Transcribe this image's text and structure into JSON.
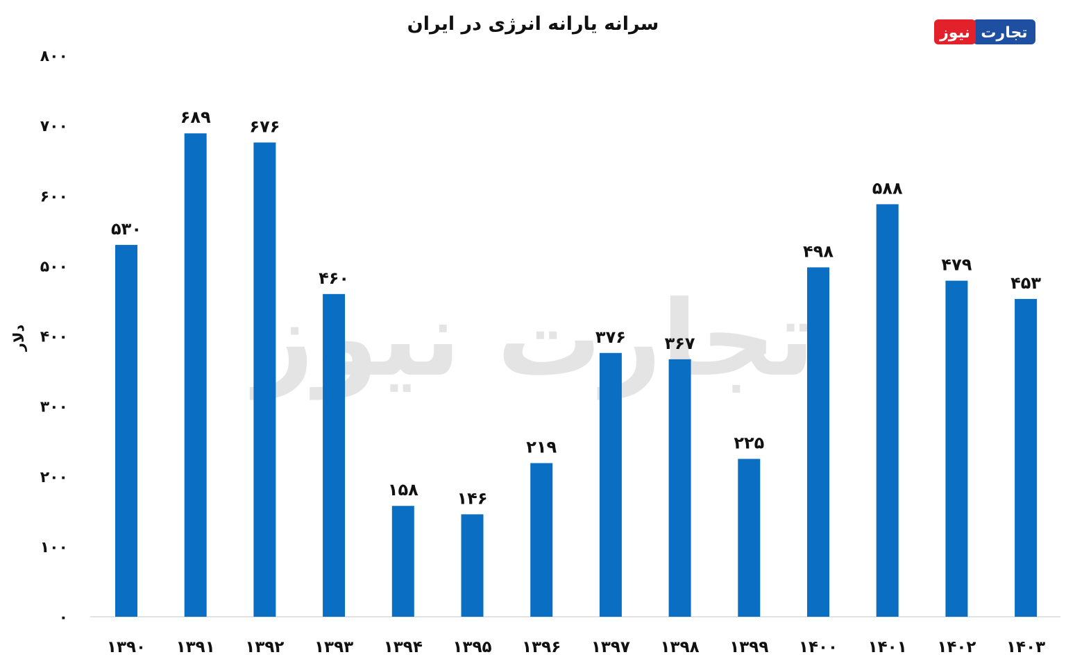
{
  "logo": {
    "part1": "تجارت",
    "part2": "نیوز",
    "color_red": "#e3212a",
    "color_blue": "#1f4fa0"
  },
  "watermark": "تجارت نیوز",
  "chart_data": {
    "type": "bar",
    "title": "سرانه یارانه انرژی در ایران",
    "ylabel": "دلار",
    "xlabel": "",
    "ylim": [
      0,
      800
    ],
    "yticks": [
      0,
      100,
      200,
      300,
      400,
      500,
      600,
      700,
      800
    ],
    "ytick_labels": [
      "۰",
      "۱۰۰",
      "۲۰۰",
      "۳۰۰",
      "۴۰۰",
      "۵۰۰",
      "۶۰۰",
      "۷۰۰",
      "۸۰۰"
    ],
    "categories": [
      "۱۳۹۰",
      "۱۳۹۱",
      "۱۳۹۲",
      "۱۳۹۳",
      "۱۳۹۴",
      "۱۳۹۵",
      "۱۳۹۶",
      "۱۳۹۷",
      "۱۳۹۸",
      "۱۳۹۹",
      "۱۴۰۰",
      "۱۴۰۱",
      "۱۴۰۲",
      "۱۴۰۳"
    ],
    "values": [
      530,
      689,
      676,
      460,
      158,
      146,
      219,
      376,
      367,
      225,
      498,
      588,
      479,
      453
    ],
    "data_labels": [
      "۵۳۰",
      "۶۸۹",
      "۶۷۶",
      "۴۶۰",
      "۱۵۸",
      "۱۴۶",
      "۲۱۹",
      "۳۷۶",
      "۳۶۷",
      "۲۲۵",
      "۴۹۸",
      "۵۸۸",
      "۴۷۹",
      "۴۵۳"
    ],
    "bar_color": "#0a6fc2",
    "grid": false,
    "legend": "none"
  }
}
